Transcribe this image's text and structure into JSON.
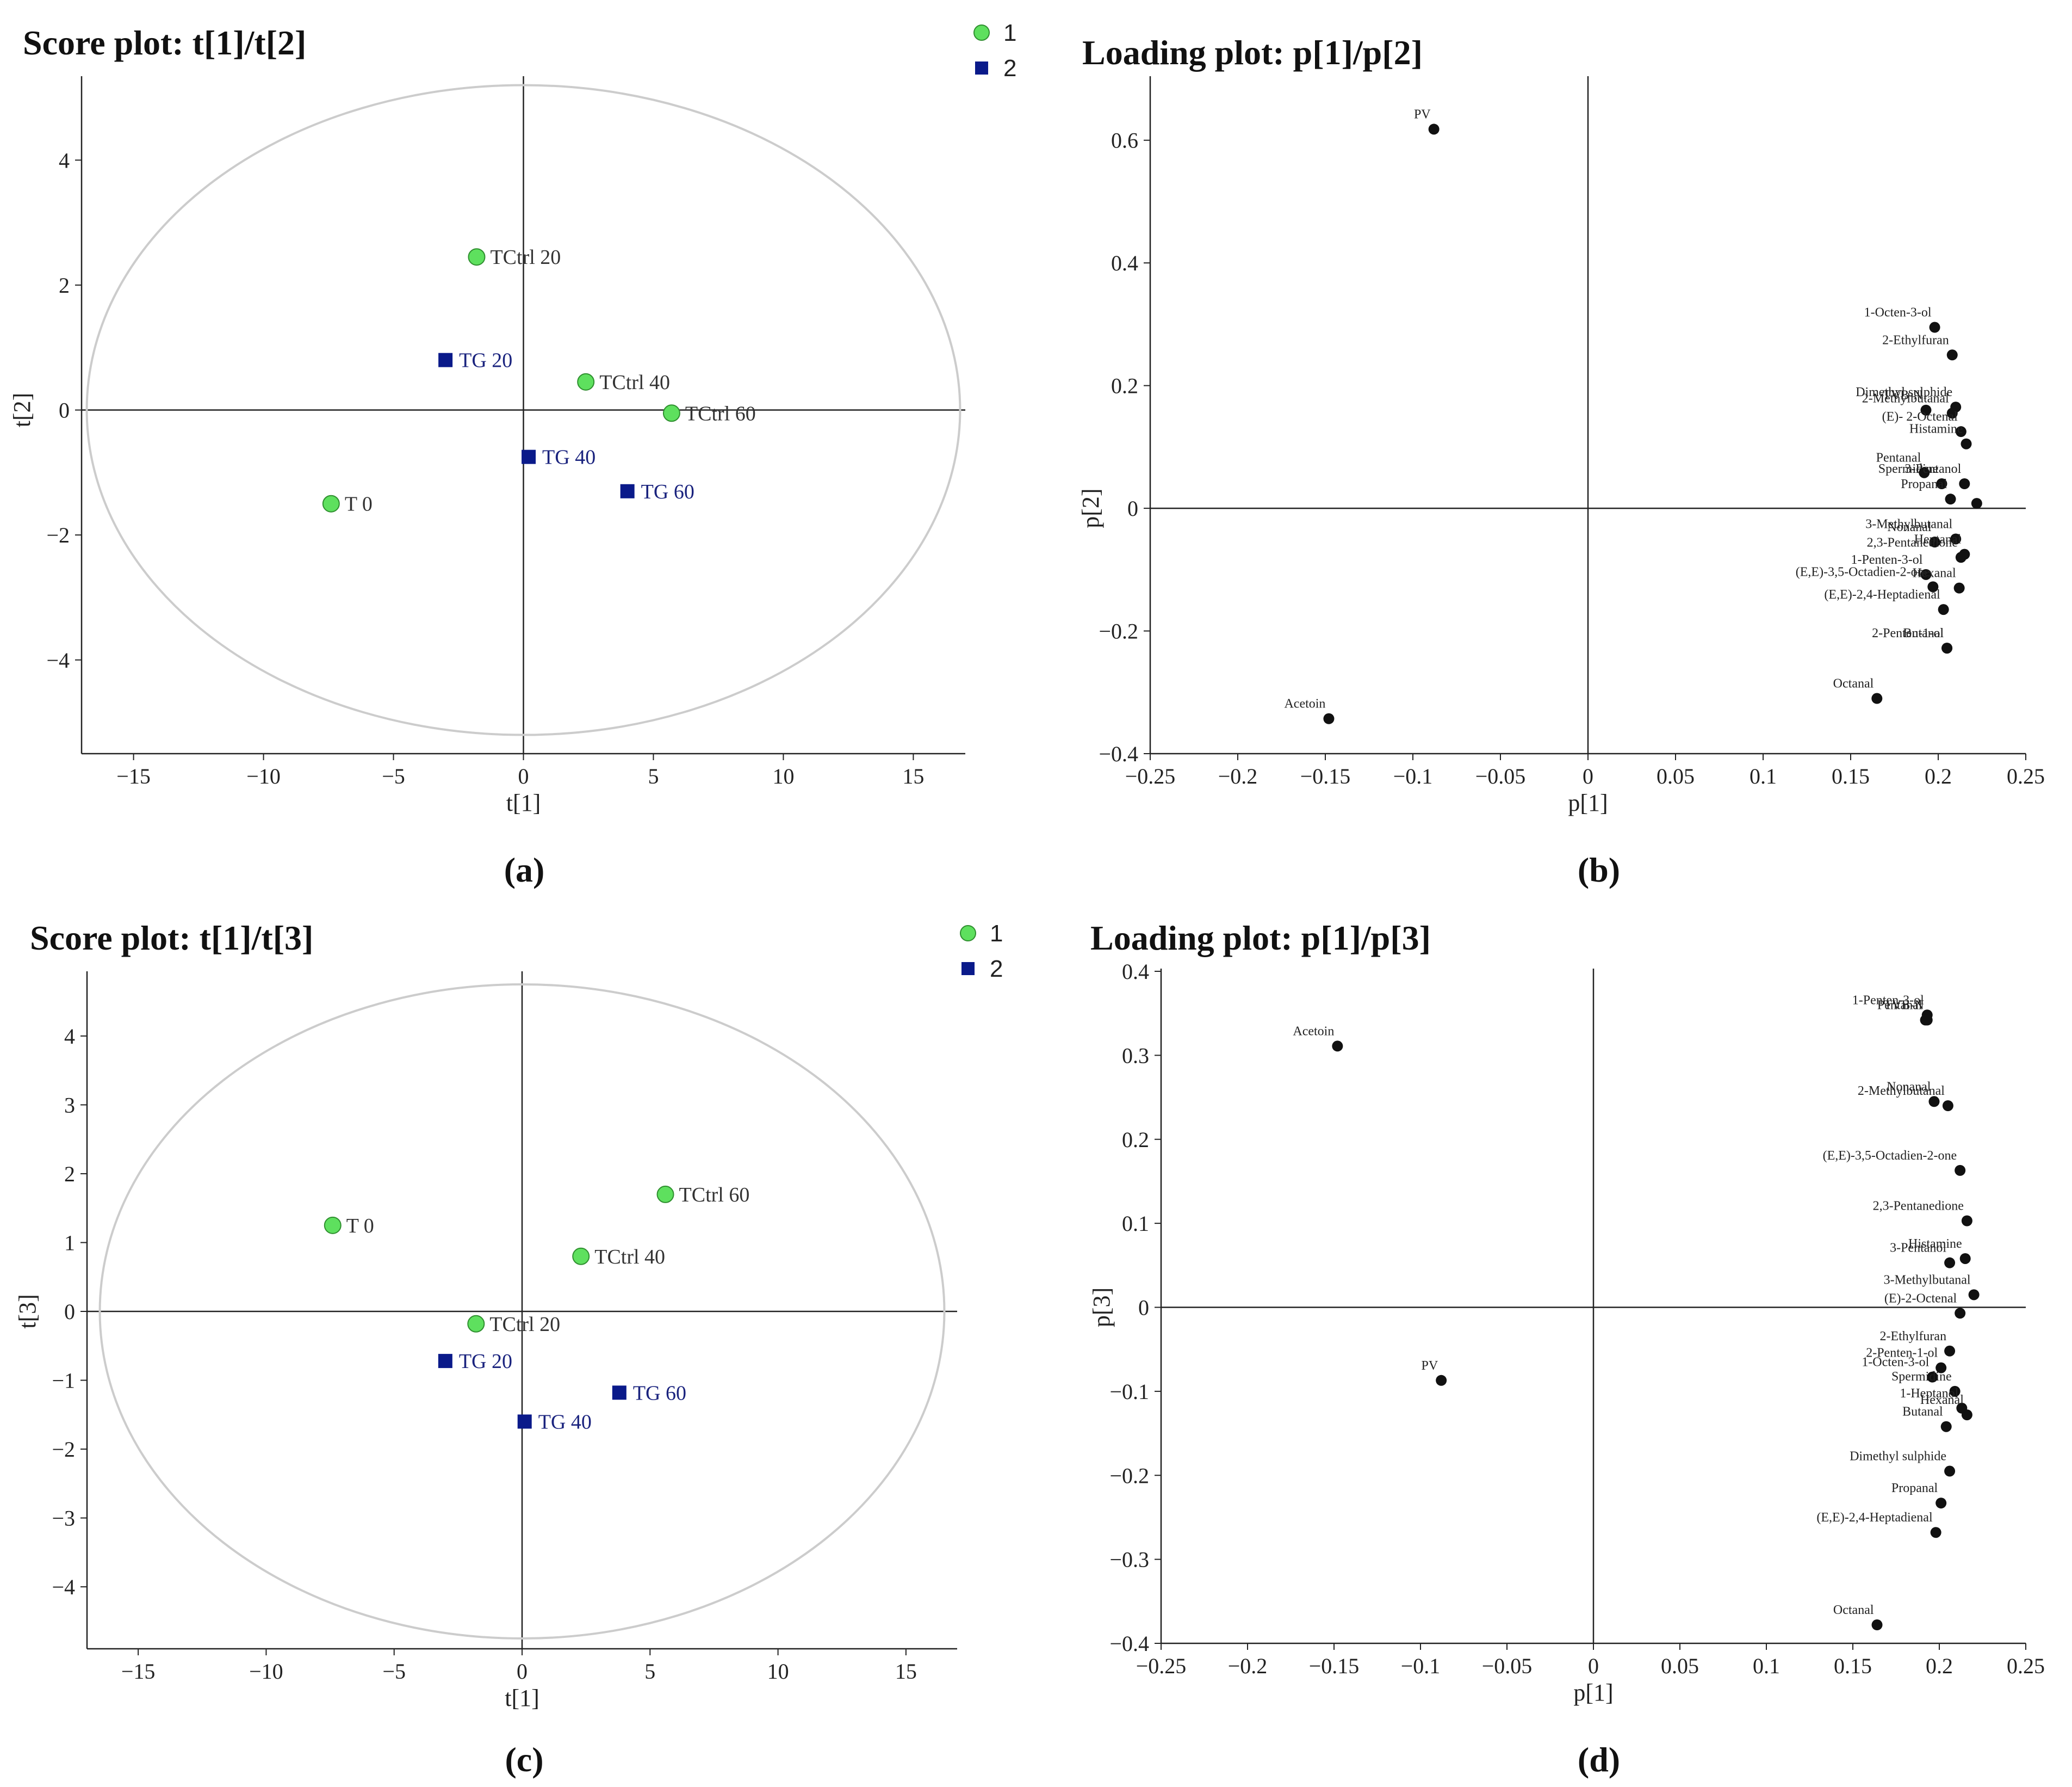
{
  "figure": {
    "captions": [
      "(a)",
      "(b)",
      "(c)",
      "(d)"
    ]
  },
  "colors": {
    "group1": "#5ee05e",
    "group1_stroke": "#2f8f2f",
    "group2": "#0a1a8a",
    "group1_text": "#333333",
    "group2_text": "#1a237e",
    "ellipse": "#cccccc",
    "axis": "#222222",
    "point": "#111111"
  },
  "chart_data": [
    {
      "id": "a",
      "type": "scatter",
      "title": "Score plot: t[1]/t[2]",
      "xlabel": "t[1]",
      "ylabel": "t[2]",
      "xlim": [
        -17,
        17
      ],
      "ylim": [
        -5.5,
        5.3
      ],
      "xticks": [
        -15,
        -10,
        -5,
        0,
        5,
        10,
        15
      ],
      "yticks": [
        -4,
        -2,
        0,
        2,
        4
      ],
      "ellipse": {
        "rx": 16.8,
        "ry": 5.2
      },
      "legend": [
        {
          "label": "1",
          "group": 1
        },
        {
          "label": "2",
          "group": 2
        }
      ],
      "points": [
        {
          "label": "TCtrl 20",
          "x": -1.8,
          "y": 2.45,
          "group": 1
        },
        {
          "label": "TG  20",
          "x": -3.0,
          "y": 0.8,
          "group": 2
        },
        {
          "label": "TCtrl 40",
          "x": 2.4,
          "y": 0.45,
          "group": 1
        },
        {
          "label": "TCtrl 60",
          "x": 5.7,
          "y": -0.05,
          "group": 1
        },
        {
          "label": "TG  40",
          "x": 0.2,
          "y": -0.75,
          "group": 2
        },
        {
          "label": "TG  60",
          "x": 4.0,
          "y": -1.3,
          "group": 2
        },
        {
          "label": "T   0",
          "x": -7.4,
          "y": -1.5,
          "group": 1
        }
      ]
    },
    {
      "id": "b",
      "type": "scatter",
      "title": "Loading plot: p[1]/p[2]",
      "xlabel": "p[1]",
      "ylabel": "p[2]",
      "xlim": [
        -0.25,
        0.25
      ],
      "ylim": [
        -0.4,
        0.7
      ],
      "xticks": [
        -0.25,
        -0.2,
        -0.15,
        -0.1,
        -0.05,
        0,
        0.05,
        0.1,
        0.15,
        0.2,
        0.25
      ],
      "xtick_labels": [
        "−0.25",
        "−0.2",
        "−0.15",
        "−0.1",
        "−0.05",
        "0",
        "0.05",
        "0.1",
        "0.15",
        "0.2",
        "0.25"
      ],
      "yticks": [
        -0.4,
        -0.2,
        0,
        0.2,
        0.4,
        0.6
      ],
      "ytick_labels": [
        "−0.4",
        "−0.2",
        "0",
        "0.2",
        "0.4",
        "0.6"
      ],
      "points": [
        {
          "label": "PV",
          "x": -0.088,
          "y": 0.618
        },
        {
          "label": "Acetoin",
          "x": -0.148,
          "y": -0.343
        },
        {
          "label": "1-Octen-3-ol",
          "x": 0.198,
          "y": 0.295
        },
        {
          "label": "2-Ethylfuran",
          "x": 0.208,
          "y": 0.25
        },
        {
          "label": "Dimethyl sulphide",
          "x": 0.21,
          "y": 0.165
        },
        {
          "label": "TVB-N",
          "x": 0.193,
          "y": 0.16
        },
        {
          "label": "2-Methylbutanal",
          "x": 0.208,
          "y": 0.155
        },
        {
          "label": "(E)- 2-Octenal",
          "x": 0.213,
          "y": 0.125
        },
        {
          "label": "Histamine",
          "x": 0.216,
          "y": 0.105
        },
        {
          "label": "Spermidine",
          "x": 0.202,
          "y": 0.04
        },
        {
          "label": "Pentanal",
          "x": 0.192,
          "y": 0.058
        },
        {
          "label": "3-Pentanol",
          "x": 0.215,
          "y": 0.04
        },
        {
          "label": "Propanal",
          "x": 0.207,
          "y": 0.015
        },
        {
          "label": "",
          "x": 0.222,
          "y": 0.008
        },
        {
          "label": "3-Methylbutanal",
          "x": 0.21,
          "y": -0.05
        },
        {
          "label": "Nonanal",
          "x": 0.198,
          "y": -0.055
        },
        {
          "label": "Heptanal",
          "x": 0.215,
          "y": -0.075
        },
        {
          "label": "2,3-Pentanedione",
          "x": 0.213,
          "y": -0.08
        },
        {
          "label": "1-Penten-3-ol",
          "x": 0.193,
          "y": -0.108
        },
        {
          "label": "Hexanal",
          "x": 0.212,
          "y": -0.13
        },
        {
          "label": "(E,E)-3,5-Octadien-2-one",
          "x": 0.197,
          "y": -0.128
        },
        {
          "label": "(E,E)-2,4-Heptadienal",
          "x": 0.203,
          "y": -0.165
        },
        {
          "label": "2-Penten-1-ol",
          "x": 0.205,
          "y": -0.228
        },
        {
          "label": "Butanal",
          "x": 0.205,
          "y": -0.228
        },
        {
          "label": "Octanal",
          "x": 0.165,
          "y": -0.31
        }
      ]
    },
    {
      "id": "c",
      "type": "scatter",
      "title": "Score plot: t[1]/t[3]",
      "xlabel": "t[1]",
      "ylabel": "t[3]",
      "xlim": [
        -17,
        17
      ],
      "ylim": [
        -4.9,
        4.9
      ],
      "xticks": [
        -15,
        -10,
        -5,
        0,
        5,
        10,
        15
      ],
      "yticks": [
        -4,
        -3,
        -2,
        -1,
        0,
        1,
        2,
        3,
        4
      ],
      "ellipse": {
        "rx": 16.5,
        "ry": 4.75
      },
      "legend": [
        {
          "label": "1",
          "group": 1
        },
        {
          "label": "2",
          "group": 2
        }
      ],
      "points": [
        {
          "label": "TCtrl 60",
          "x": 5.6,
          "y": 1.7,
          "group": 1
        },
        {
          "label": "T   0",
          "x": -7.4,
          "y": 1.25,
          "group": 1
        },
        {
          "label": "TCtrl 40",
          "x": 2.3,
          "y": 0.8,
          "group": 1
        },
        {
          "label": "TCtrl 20",
          "x": -1.8,
          "y": -0.18,
          "group": 1
        },
        {
          "label": "TG  20",
          "x": -3.0,
          "y": -0.72,
          "group": 2
        },
        {
          "label": "TG  60",
          "x": 3.8,
          "y": -1.18,
          "group": 2
        },
        {
          "label": "TG  40",
          "x": 0.1,
          "y": -1.6,
          "group": 2
        }
      ]
    },
    {
      "id": "d",
      "type": "scatter",
      "title": "Loading plot: p[1]/p[3]",
      "xlabel": "p[1]",
      "ylabel": "p[3]",
      "xlim": [
        -0.25,
        0.25
      ],
      "ylim": [
        -0.4,
        0.4
      ],
      "xticks": [
        -0.25,
        -0.2,
        -0.15,
        -0.1,
        -0.05,
        0,
        0.05,
        0.1,
        0.15,
        0.2,
        0.25
      ],
      "xtick_labels": [
        "−0.25",
        "−0.2",
        "−0.15",
        "−0.1",
        "−0.05",
        "0",
        "0.05",
        "0.1",
        "0.15",
        "0.2",
        "0.25"
      ],
      "yticks": [
        -0.4,
        -0.3,
        -0.2,
        -0.1,
        0,
        0.1,
        0.2,
        0.3,
        0.4
      ],
      "ytick_labels": [
        "−0.4",
        "−0.3",
        "−0.2",
        "−0.1",
        "0",
        "0.1",
        "0.2",
        "0.3",
        "0.4"
      ],
      "points": [
        {
          "label": "Acetoin",
          "x": -0.148,
          "y": 0.311
        },
        {
          "label": "PV",
          "x": -0.088,
          "y": -0.087
        },
        {
          "label": "1-Penten-3-ol",
          "x": 0.193,
          "y": 0.348
        },
        {
          "label": "Pentanal",
          "x": 0.192,
          "y": 0.342
        },
        {
          "label": "TVB-N",
          "x": 0.193,
          "y": 0.342
        },
        {
          "label": "Nonanal",
          "x": 0.197,
          "y": 0.245
        },
        {
          "label": "2-Methylbutanal",
          "x": 0.205,
          "y": 0.24
        },
        {
          "label": "(E,E)-3,5-Octadien-2-one",
          "x": 0.212,
          "y": 0.163
        },
        {
          "label": "2,3-Pentanedione",
          "x": 0.216,
          "y": 0.103
        },
        {
          "label": "Histamine",
          "x": 0.215,
          "y": 0.058
        },
        {
          "label": "3-Pentanol",
          "x": 0.206,
          "y": 0.053
        },
        {
          "label": "3-Methylbutanal",
          "x": 0.22,
          "y": 0.015
        },
        {
          "label": "(E)-2-Octenal",
          "x": 0.212,
          "y": -0.007
        },
        {
          "label": "2-Ethylfuran",
          "x": 0.206,
          "y": -0.052
        },
        {
          "label": "2-Penten-1-ol",
          "x": 0.201,
          "y": -0.072
        },
        {
          "label": "1-Octen-3-ol",
          "x": 0.196,
          "y": -0.083
        },
        {
          "label": "Spermidine",
          "x": 0.209,
          "y": -0.1
        },
        {
          "label": "1-Heptanol",
          "x": 0.213,
          "y": -0.12
        },
        {
          "label": "Hexanal",
          "x": 0.216,
          "y": -0.128
        },
        {
          "label": "Butanal",
          "x": 0.204,
          "y": -0.142
        },
        {
          "label": "Dimethyl sulphide",
          "x": 0.206,
          "y": -0.195
        },
        {
          "label": "Propanal",
          "x": 0.201,
          "y": -0.233
        },
        {
          "label": "(E,E)-2,4-Heptadienal",
          "x": 0.198,
          "y": -0.268
        },
        {
          "label": "Octanal",
          "x": 0.164,
          "y": -0.378
        }
      ]
    }
  ]
}
